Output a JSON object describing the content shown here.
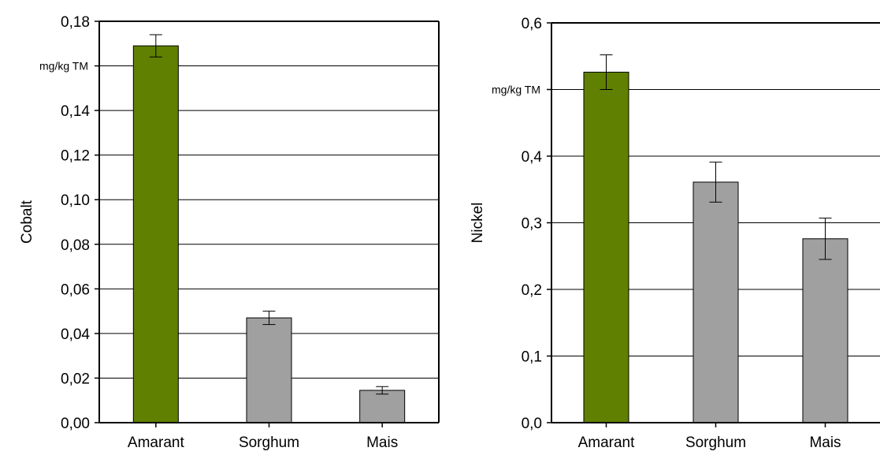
{
  "chart_data": [
    {
      "type": "bar",
      "ylabel": "Cobalt",
      "unit": "mg/kg TM",
      "categories": [
        "Amarant",
        "Sorghum",
        "Mais"
      ],
      "values": [
        0.169,
        0.047,
        0.0145
      ],
      "errors": [
        0.005,
        0.003,
        0.0017
      ],
      "colors": [
        "#5f8000",
        "#a0a0a0",
        "#a0a0a0"
      ],
      "ylim": [
        0,
        0.18
      ],
      "yticks": [
        0,
        0.02,
        0.04,
        0.06,
        0.08,
        0.1,
        0.12,
        0.14,
        0.16,
        0.18
      ],
      "ytick_labels": [
        "0,00",
        "0,02",
        "0,04",
        "0,06",
        "0,08",
        "0,10",
        "0,12",
        "0,14",
        "",
        "0,18"
      ],
      "grid": true,
      "legend": "none"
    },
    {
      "type": "bar",
      "ylabel": "Nickel",
      "unit": "mg/kg TM",
      "categories": [
        "Amarant",
        "Sorghum",
        "Mais"
      ],
      "values": [
        0.526,
        0.361,
        0.276
      ],
      "errors": [
        0.026,
        0.03,
        0.031
      ],
      "colors": [
        "#5f8000",
        "#a0a0a0",
        "#a0a0a0"
      ],
      "ylim": [
        0,
        0.6
      ],
      "yticks": [
        0,
        0.1,
        0.2,
        0.3,
        0.4,
        0.5,
        0.6
      ],
      "ytick_labels": [
        "0,0",
        "0,1",
        "0,2",
        "0,3",
        "0,4",
        "",
        "0,6"
      ],
      "grid": true,
      "legend": "none"
    }
  ]
}
